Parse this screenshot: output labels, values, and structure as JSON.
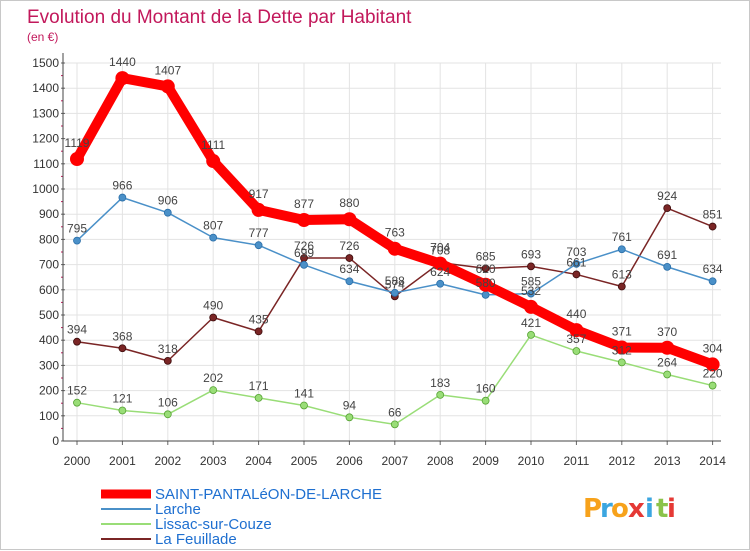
{
  "chart_data": {
    "type": "line",
    "title": "Evolution du Montant de la Dette par Habitant",
    "unit_label": "(en €)",
    "ylim": [
      0,
      1500
    ],
    "yticks": [
      0,
      100,
      200,
      300,
      400,
      500,
      600,
      700,
      800,
      900,
      1000,
      1100,
      1200,
      1300,
      1400,
      1500
    ],
    "grid": true,
    "legend_position": "bottom-left",
    "categories": [
      "2000",
      "2001",
      "2002",
      "2003",
      "2004",
      "2005",
      "2006",
      "2007",
      "2008",
      "2009",
      "2010",
      "2011",
      "2012",
      "2013",
      "2014"
    ],
    "series": [
      {
        "name": "SAINT-PANTALéON-DE-LARCHE",
        "color": "#ff0000",
        "values": [
          1119,
          1440,
          1407,
          1111,
          917,
          877,
          880,
          763,
          704,
          620,
          532,
          440,
          371,
          370,
          304
        ]
      },
      {
        "name": "Larche",
        "color": "#4a90c8",
        "values": [
          795,
          966,
          906,
          807,
          777,
          699,
          634,
          588,
          624,
          580,
          585,
          703,
          761,
          691,
          634
        ]
      },
      {
        "name": "Lissac-sur-Couze",
        "color": "#99dd77",
        "values": [
          152,
          121,
          106,
          202,
          171,
          141,
          94,
          66,
          183,
          160,
          421,
          357,
          312,
          264,
          220
        ]
      },
      {
        "name": "La Feuillade",
        "color": "#7a2525",
        "values": [
          394,
          368,
          318,
          490,
          435,
          726,
          726,
          574,
          708,
          685,
          693,
          661,
          613,
          924,
          851
        ]
      }
    ],
    "labels": [
      [
        "1119",
        "1440",
        "1407",
        "1111",
        "917",
        "877",
        "880",
        "763",
        "704",
        "620",
        "532",
        "440",
        "371",
        "370",
        "304"
      ],
      [
        "795",
        "966",
        "906",
        "807",
        "777",
        "699",
        "634",
        "588",
        "624",
        "580",
        "585",
        "703",
        "761",
        "691",
        "634"
      ],
      [
        "152",
        "121",
        "106",
        "202",
        "171",
        "141",
        "94",
        "66",
        "183",
        "160",
        "421",
        "357",
        "312",
        "264",
        "220"
      ],
      [
        "394",
        "368",
        "318",
        "490",
        "435",
        "726",
        "726",
        "574",
        "708",
        "685",
        "693",
        "661",
        "613",
        "924",
        "851"
      ]
    ]
  },
  "logo": {
    "letters": [
      "P",
      "r",
      "o",
      "x",
      "i",
      "t",
      "i"
    ],
    "colors": [
      "#f7a21b",
      "#3ba6e0",
      "#f7a21b",
      "#e53935",
      "#3ba6e0",
      "#8bc34a",
      "#e53935"
    ]
  }
}
